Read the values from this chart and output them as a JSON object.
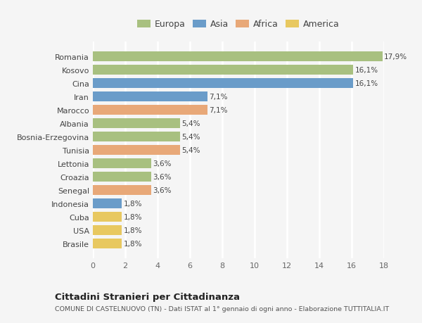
{
  "countries": [
    "Romania",
    "Kosovo",
    "Cina",
    "Iran",
    "Marocco",
    "Albania",
    "Bosnia-Erzegovina",
    "Tunisia",
    "Lettonia",
    "Croazia",
    "Senegal",
    "Indonesia",
    "Cuba",
    "USA",
    "Brasile"
  ],
  "values": [
    17.9,
    16.1,
    16.1,
    7.1,
    7.1,
    5.4,
    5.4,
    5.4,
    3.6,
    3.6,
    3.6,
    1.8,
    1.8,
    1.8,
    1.8
  ],
  "labels": [
    "17,9%",
    "16,1%",
    "16,1%",
    "7,1%",
    "7,1%",
    "5,4%",
    "5,4%",
    "5,4%",
    "3,6%",
    "3,6%",
    "3,6%",
    "1,8%",
    "1,8%",
    "1,8%",
    "1,8%"
  ],
  "categories": [
    "Europa",
    "Asia",
    "Africa",
    "America"
  ],
  "bar_colors": [
    "#a8c080",
    "#a8c080",
    "#6a9cc9",
    "#6a9cc9",
    "#e8a878",
    "#a8c080",
    "#a8c080",
    "#e8a878",
    "#a8c080",
    "#a8c080",
    "#e8a878",
    "#6a9cc9",
    "#e8c860",
    "#e8c860",
    "#e8c860"
  ],
  "legend_colors": [
    "#a8c080",
    "#6a9cc9",
    "#e8a878",
    "#e8c860"
  ],
  "title": "Cittadini Stranieri per Cittadinanza",
  "subtitle": "COMUNE DI CASTELNUOVO (TN) - Dati ISTAT al 1° gennaio di ogni anno - Elaborazione TUTTITALIA.IT",
  "xlim": [
    0,
    18
  ],
  "xticks": [
    0,
    2,
    4,
    6,
    8,
    10,
    12,
    14,
    16,
    18
  ],
  "background_color": "#f5f5f5",
  "grid_color": "#ffffff",
  "bar_height": 0.75
}
